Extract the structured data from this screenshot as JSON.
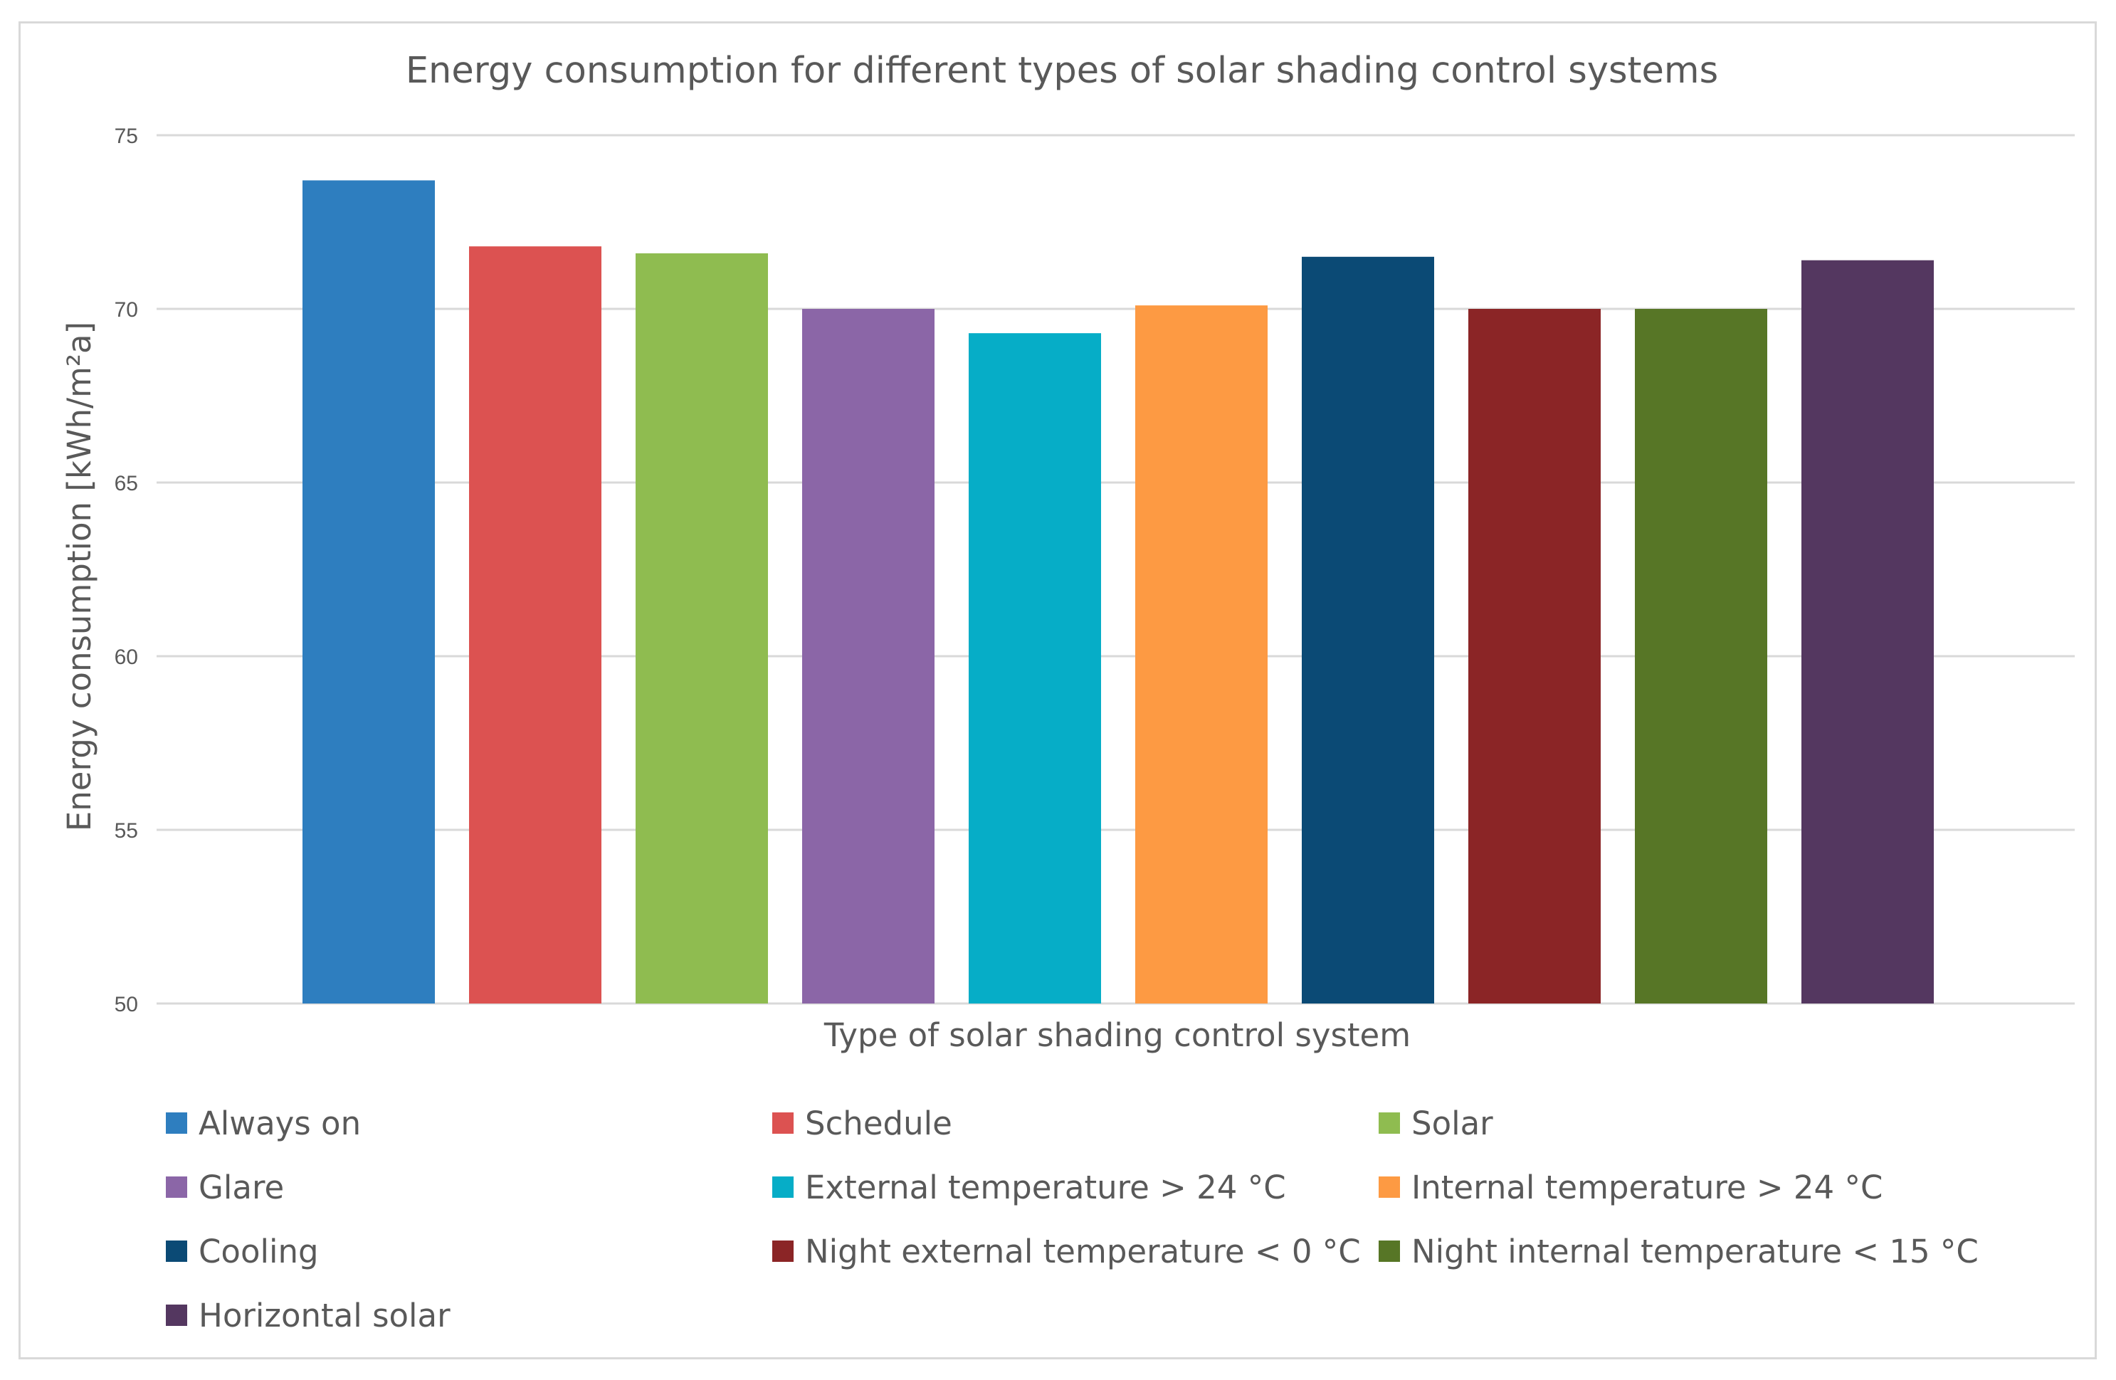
{
  "chart_data": {
    "type": "bar",
    "title": "Energy consumption for different types of solar shading control systems",
    "xlabel": "Type of solar shading control system",
    "ylabel": "Energy consumption [kWh/m²a]",
    "ylim": [
      50,
      75
    ],
    "yticks": [
      "50",
      "55",
      "60",
      "65",
      "70",
      "75"
    ],
    "grid": true,
    "legend_position": "bottom",
    "categories": [
      "Always on",
      "Schedule",
      "Solar",
      "Glare",
      "External temperature > 24 °C",
      "Internal temperature > 24 °C",
      "Cooling",
      "Night external temperature < 0 °C",
      "Night internal temperature < 15 °C",
      "Horizontal solar"
    ],
    "values": [
      73.7,
      71.8,
      71.6,
      70.0,
      69.3,
      70.1,
      71.5,
      70.0,
      70.0,
      71.4
    ],
    "colors": [
      "#2e7ebf",
      "#dc5251",
      "#8fbc50",
      "#8b66a7",
      "#06adc7",
      "#fd9a43",
      "#0b4a75",
      "#8b2526",
      "#577626",
      "#543760"
    ],
    "gridline_color": "#d9d9d9",
    "text_color": "#595959"
  }
}
